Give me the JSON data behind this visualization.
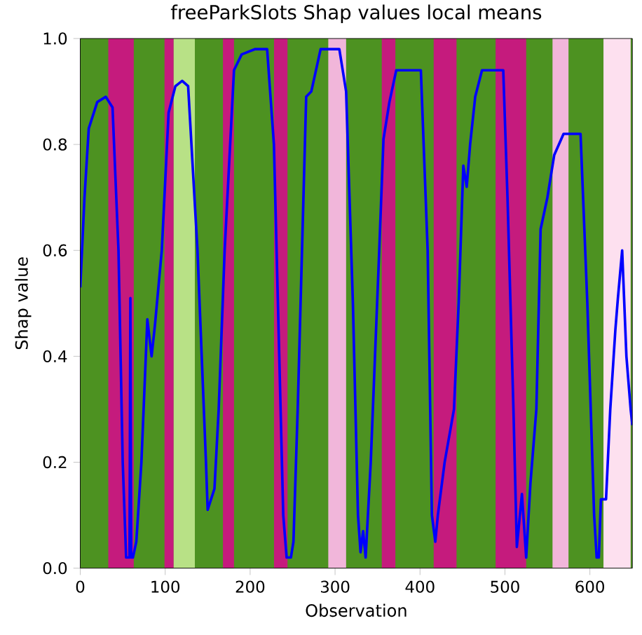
{
  "chart_data": {
    "type": "line",
    "title": "freeParkSlots Shap values local means",
    "xlabel": "Observation",
    "ylabel": "Shap value",
    "xlim": [
      0,
      650
    ],
    "ylim": [
      0,
      1
    ],
    "xticks": [
      0,
      100,
      200,
      300,
      400,
      500,
      600
    ],
    "yticks": [
      {
        "value": 0,
        "label": "0.0"
      },
      0.2,
      0.4,
      0.6,
      0.8,
      {
        "value": 1,
        "label": "1.0"
      }
    ],
    "bands": [
      {
        "axis": "x",
        "from": 0,
        "to": 650,
        "color": "#4d9221"
      },
      {
        "axis": "x",
        "from": 33,
        "to": 63,
        "color": "#c51b7d"
      },
      {
        "axis": "x",
        "from": 99,
        "to": 110,
        "color": "#c51b7d"
      },
      {
        "axis": "x",
        "from": 110,
        "to": 135,
        "color": "#b8e186"
      },
      {
        "axis": "x",
        "from": 168,
        "to": 181,
        "color": "#c51b7d"
      },
      {
        "axis": "x",
        "from": 228,
        "to": 244,
        "color": "#c51b7d"
      },
      {
        "axis": "x",
        "from": 292,
        "to": 313,
        "color": "#f1b6da"
      },
      {
        "axis": "x",
        "from": 355,
        "to": 371,
        "color": "#c51b7d"
      },
      {
        "axis": "x",
        "from": 416,
        "to": 443,
        "color": "#c51b7d"
      },
      {
        "axis": "x",
        "from": 489,
        "to": 525,
        "color": "#c51b7d"
      },
      {
        "axis": "x",
        "from": 556,
        "to": 575,
        "color": "#f1b6da"
      },
      {
        "axis": "x",
        "from": 616,
        "to": 648,
        "color": "#fde0ef"
      }
    ],
    "series": [
      {
        "color": "#0000ff",
        "x": [
          0,
          5,
          10,
          20,
          30,
          38,
          45,
          50,
          54,
          58,
          59,
          60,
          62,
          66,
          72,
          79,
          84,
          88,
          96,
          104,
          112,
          120,
          127,
          138,
          148,
          150,
          158,
          163,
          170,
          181,
          190,
          206,
          220,
          228,
          239,
          243,
          248,
          251,
          256,
          266,
          272,
          283,
          305,
          313,
          321,
          327,
          330,
          333,
          336,
          342,
          352,
          357,
          364,
          372,
          401,
          409,
          414,
          418,
          421,
          429,
          434.5,
          440,
          445.5,
          451,
          455,
          459,
          465,
          473,
          498,
          503,
          510,
          514,
          520,
          525,
          530,
          537,
          542,
          550,
          558,
          569,
          589,
          597,
          605,
          608,
          610.5,
          613,
          619,
          624,
          630,
          633,
          638,
          643,
          648,
          650
        ],
        "values": [
          0.53,
          0.7,
          0.83,
          0.88,
          0.89,
          0.87,
          0.6,
          0.2,
          0.02,
          0.02,
          0.51,
          0.02,
          0.02,
          0.05,
          0.2,
          0.47,
          0.4,
          0.46,
          0.6,
          0.86,
          0.91,
          0.92,
          0.91,
          0.6,
          0.2,
          0.11,
          0.15,
          0.3,
          0.6,
          0.94,
          0.97,
          0.98,
          0.98,
          0.8,
          0.1,
          0.02,
          0.02,
          0.05,
          0.3,
          0.89,
          0.9,
          0.98,
          0.98,
          0.9,
          0.5,
          0.1,
          0.03,
          0.07,
          0.02,
          0.2,
          0.6,
          0.81,
          0.88,
          0.94,
          0.94,
          0.6,
          0.1,
          0.05,
          0.1,
          0.2,
          0.25,
          0.3,
          0.5,
          0.76,
          0.72,
          0.8,
          0.89,
          0.94,
          0.94,
          0.7,
          0.3,
          0.04,
          0.14,
          0.02,
          0.16,
          0.3,
          0.64,
          0.7,
          0.78,
          0.82,
          0.82,
          0.5,
          0.1,
          0.02,
          0.02,
          0.13,
          0.13,
          0.3,
          0.45,
          0.51,
          0.6,
          0.4,
          0.3,
          0.27
        ]
      }
    ]
  }
}
